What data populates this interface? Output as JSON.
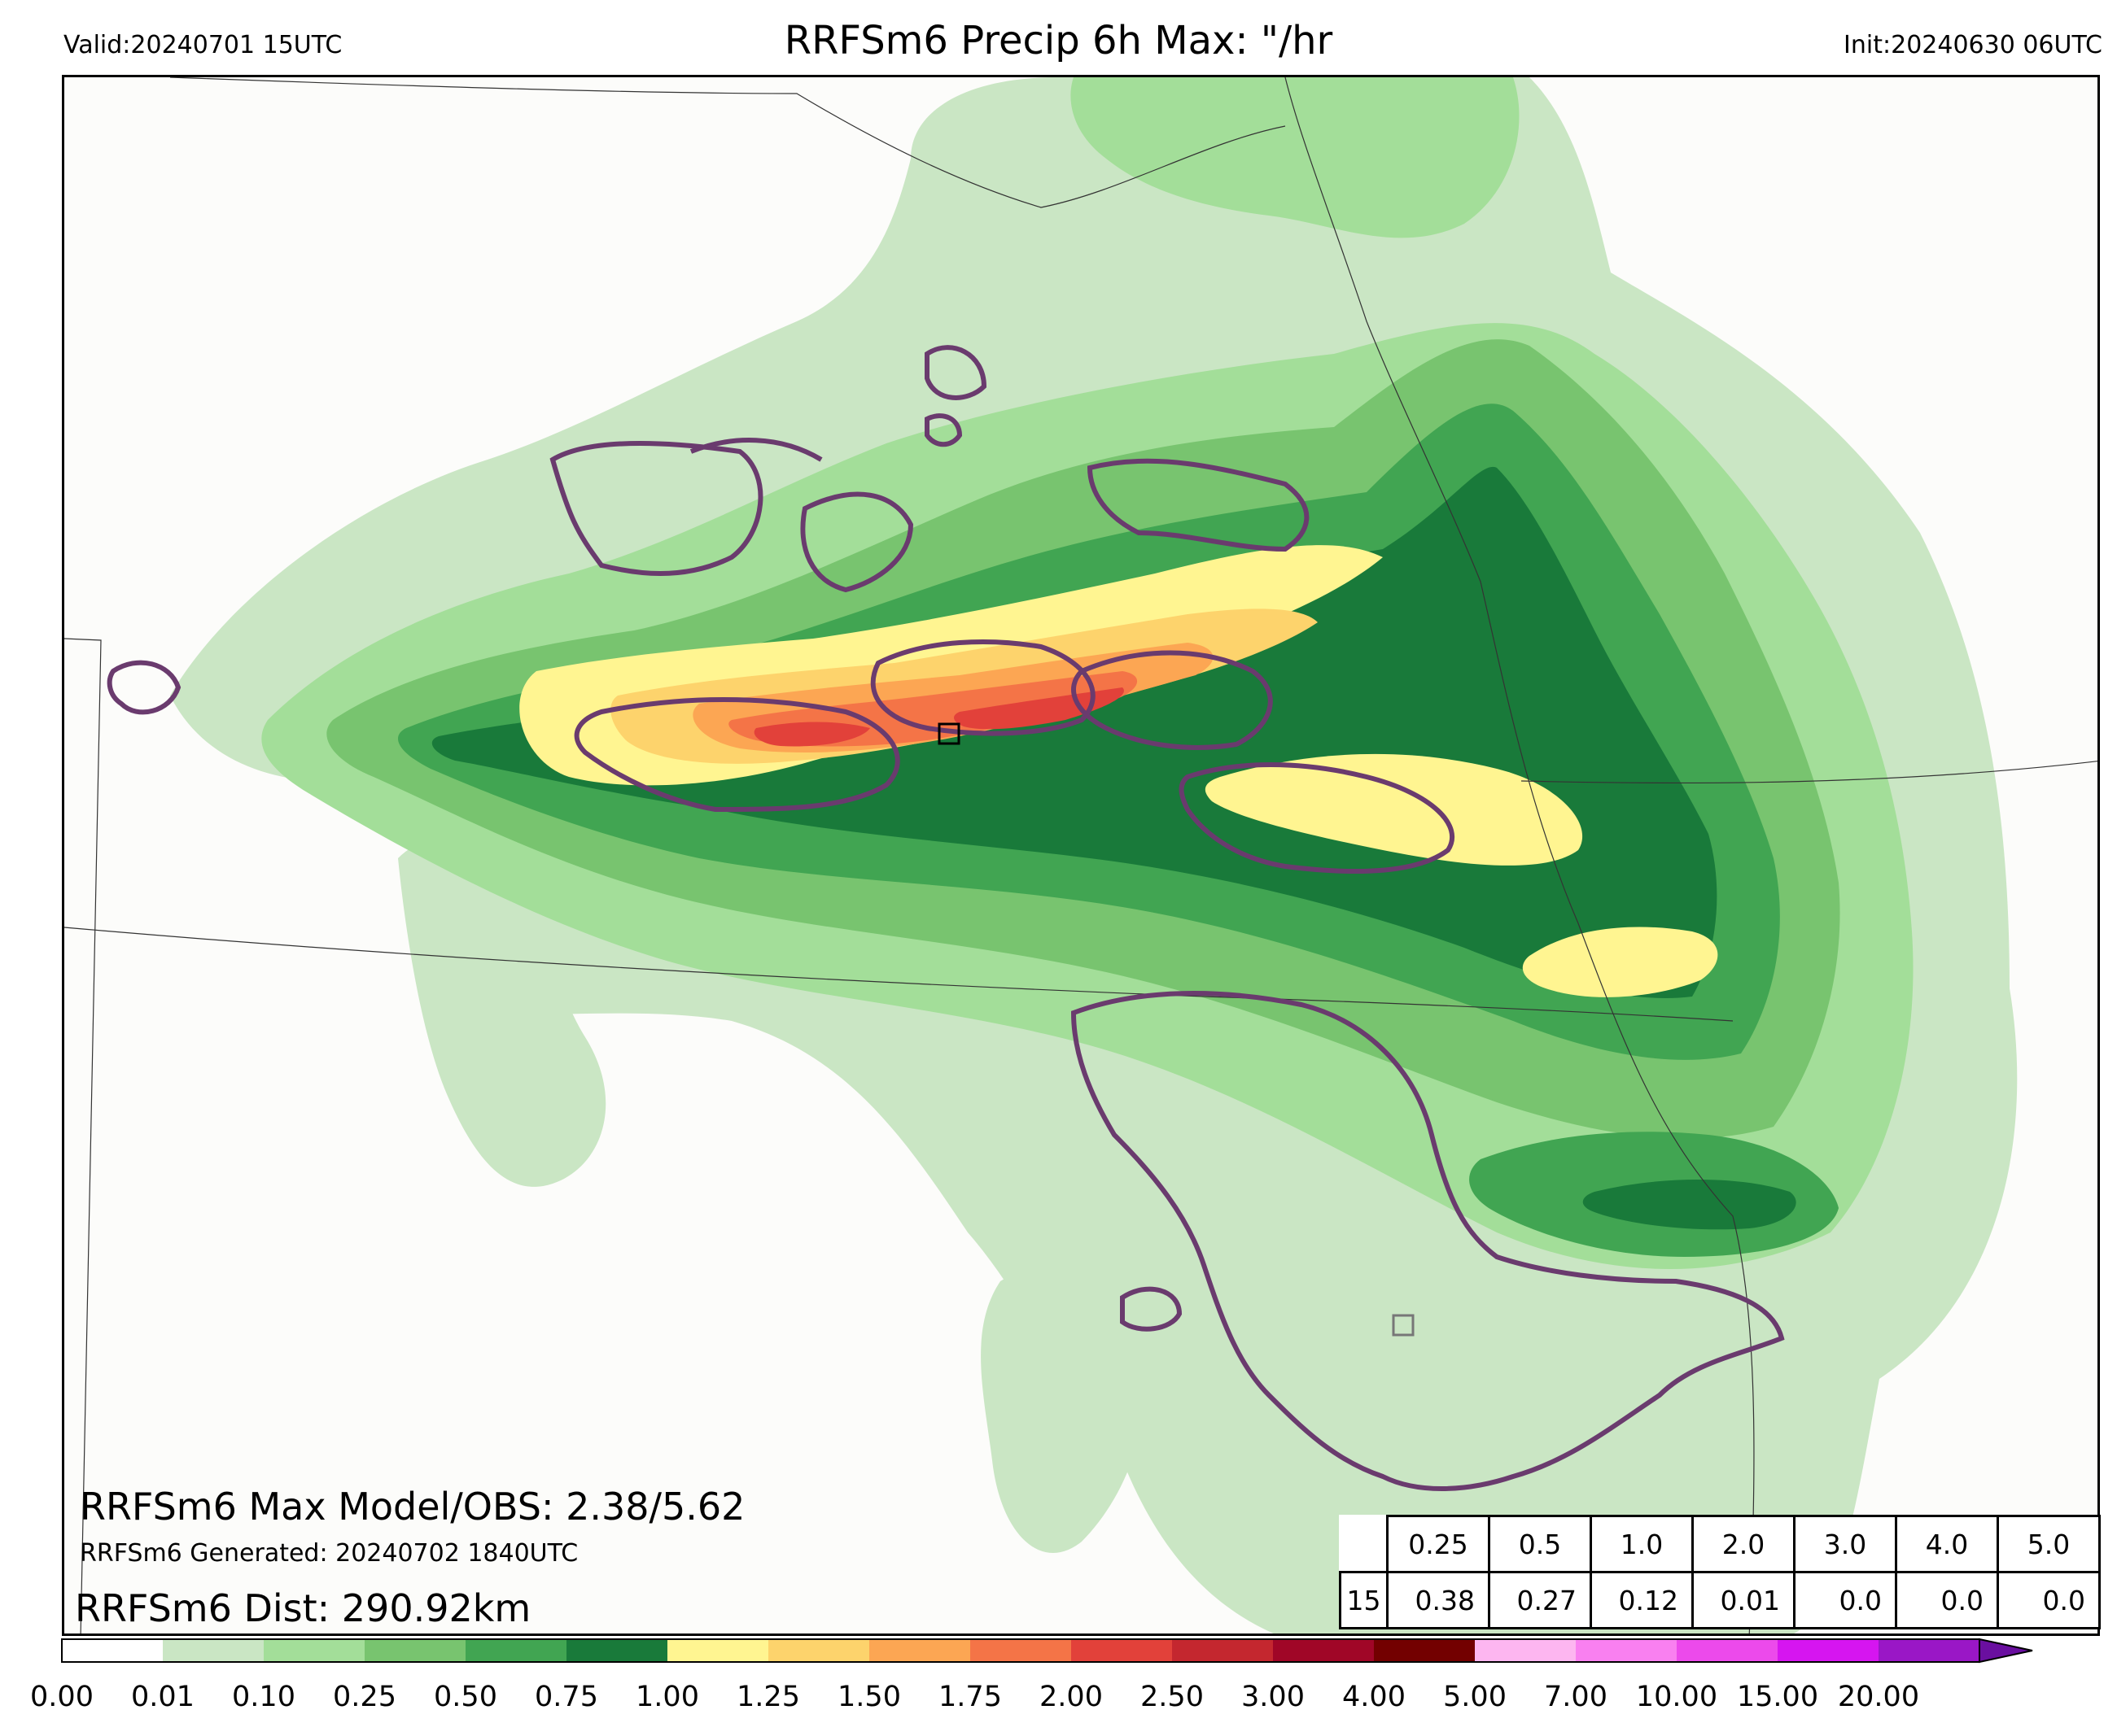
{
  "header": {
    "valid": "Valid:20240701 15UTC",
    "title": "RRFSm6 Precip 6h Max: \"/hr",
    "init": "Init:20240630 06UTC"
  },
  "stats": {
    "max_line": "RRFSm6 Max Model/OBS: 2.38/5.62",
    "generated_line": "RRFSm6 Generated: 20240702 1840UTC",
    "dist_line": "RRFSm6 Dist: 290.92km"
  },
  "threshold_table": {
    "thresholds": [
      "0.25",
      "0.5",
      "1.0",
      "2.0",
      "3.0",
      "4.0",
      "5.0"
    ],
    "row_label": "15",
    "values": [
      "0.38",
      "0.27",
      "0.12",
      "0.01",
      "0.0",
      "0.0",
      "0.0"
    ]
  },
  "colorbar": {
    "ticks": [
      "0.00",
      "0.01",
      "0.10",
      "0.25",
      "0.50",
      "0.75",
      "1.00",
      "1.25",
      "1.50",
      "1.75",
      "2.00",
      "2.50",
      "3.00",
      "4.00",
      "5.00",
      "7.00",
      "10.00",
      "15.00",
      "20.00"
    ],
    "colors": [
      "#ffffff",
      "#cae6c4",
      "#a3de99",
      "#78c46f",
      "#41a552",
      "#197a3a",
      "#fff591",
      "#fdd36c",
      "#fca653",
      "#f47447",
      "#e2413a",
      "#c4272f",
      "#a00627",
      "#730000",
      "#fdb6f0",
      "#f980f0",
      "#ec4aeb",
      "#d615f0",
      "#9a17c6"
    ],
    "extend_color": "#6a0fa0"
  },
  "map": {
    "background": "#fcfcfa",
    "observed_contour_color": "#6a3b6e"
  }
}
